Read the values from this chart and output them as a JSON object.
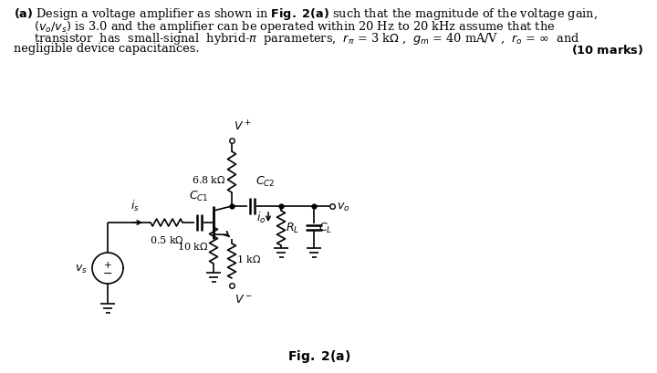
{
  "bg_color": "#ffffff",
  "fg_color": "#000000",
  "fig_label": "Fig. 2(a)"
}
